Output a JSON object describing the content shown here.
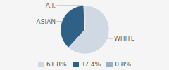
{
  "chart_data": {
    "type": "pie",
    "categories": [
      "WHITE",
      "ASIAN",
      "A.I."
    ],
    "values": [
      61.8,
      37.4,
      0.8
    ],
    "value_labels": [
      "61.8%",
      "37.4%",
      "0.8%"
    ],
    "colors": [
      "#d0d8e4",
      "#2e6185",
      "#a0afc0"
    ],
    "legend": "bottom"
  }
}
